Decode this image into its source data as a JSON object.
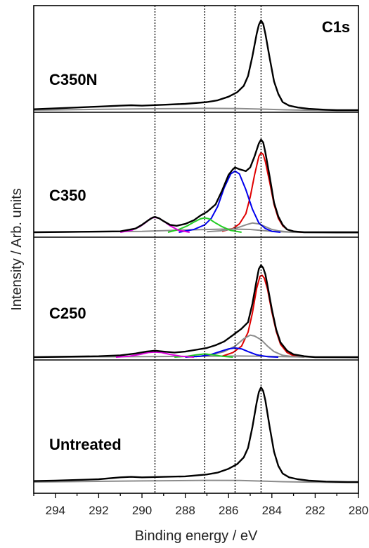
{
  "chart_data": {
    "type": "line",
    "title": "",
    "corner_label": "C1s",
    "xlabel": "Binding energy / eV",
    "ylabel": "Intensity / Arb. units",
    "xlim": [
      295,
      280
    ],
    "x_reversed": true,
    "xticks": [
      294,
      292,
      290,
      288,
      286,
      284,
      282,
      280
    ],
    "reference_lines_eV": [
      289.4,
      287.1,
      285.7,
      284.5
    ],
    "reference_line_style": "dotted",
    "colors": {
      "envelope": "#000000",
      "background": "#8c8c8c",
      "sp2_284_5": "#e00000",
      "peak_284_9": "#8c8c8c",
      "c_oh_285_7": "#0000ee",
      "c_o_287_1": "#22cc22",
      "coo_289_4": "#dd00dd"
    },
    "panels": [
      {
        "label": "C350N",
        "envelope": {
          "x": [
            295,
            294,
            293,
            292,
            291,
            290.5,
            290,
            289,
            288,
            287,
            286.5,
            286,
            285.6,
            285.3,
            285.1,
            284.9,
            284.7,
            284.6,
            284.5,
            284.4,
            284.3,
            284.1,
            283.9,
            283.7,
            283.5,
            283.2,
            282.8,
            282.3,
            281.5,
            281,
            280.5,
            280
          ],
          "y": [
            0.01,
            0.02,
            0.03,
            0.04,
            0.05,
            0.055,
            0.05,
            0.06,
            0.07,
            0.09,
            0.11,
            0.15,
            0.2,
            0.27,
            0.38,
            0.6,
            0.85,
            0.95,
            1.0,
            0.96,
            0.85,
            0.58,
            0.32,
            0.18,
            0.09,
            0.05,
            0.03,
            0.015,
            0.005,
            0.0,
            0.0,
            0.0
          ]
        },
        "background": {
          "x": [
            295,
            290,
            287,
            285.5,
            284.5,
            283.5,
            282.5,
            281,
            280
          ],
          "y": [
            0.0,
            0.015,
            0.02,
            0.018,
            0.012,
            0.005,
            0.0,
            -0.005,
            -0.005
          ]
        },
        "components": []
      },
      {
        "label": "C350",
        "envelope": {
          "x": [
            295,
            291,
            290.3,
            290,
            289.7,
            289.5,
            289.4,
            289.2,
            289,
            288.7,
            288.4,
            288,
            287.6,
            287.3,
            287,
            286.6,
            286.3,
            286,
            285.8,
            285.7,
            285.5,
            285.2,
            285,
            284.8,
            284.6,
            284.5,
            284.4,
            284.3,
            284.1,
            283.9,
            283.7,
            283.5,
            283.3,
            283,
            282.5,
            281,
            280
          ],
          "y": [
            0.0,
            0.01,
            0.04,
            0.08,
            0.13,
            0.16,
            0.165,
            0.15,
            0.12,
            0.08,
            0.07,
            0.09,
            0.13,
            0.18,
            0.22,
            0.3,
            0.45,
            0.62,
            0.68,
            0.7,
            0.68,
            0.66,
            0.7,
            0.82,
            0.96,
            1.0,
            0.97,
            0.86,
            0.6,
            0.32,
            0.17,
            0.08,
            0.03,
            0.01,
            0.0,
            0.0,
            0.0
          ]
        },
        "background": {
          "x": [
            295,
            290,
            288,
            286,
            285,
            284.5,
            284,
            283,
            281,
            280
          ],
          "y": [
            0.0,
            0.01,
            0.025,
            0.035,
            0.03,
            0.02,
            0.01,
            0.0,
            -0.005,
            -0.005
          ]
        },
        "components": [
          {
            "id": "sp2_284_5",
            "x": [
              286.3,
              285.8,
              285.5,
              285.2,
              285,
              284.8,
              284.6,
              284.5,
              284.4,
              284.3,
              284.1,
              283.9,
              283.7,
              283.5,
              283.3,
              283,
              282.6
            ],
            "y": [
              0.01,
              0.04,
              0.09,
              0.2,
              0.38,
              0.62,
              0.82,
              0.86,
              0.84,
              0.76,
              0.54,
              0.3,
              0.15,
              0.07,
              0.03,
              0.01,
              0.0
            ]
          },
          {
            "id": "peak_284_9",
            "x": [
              287,
              286.4,
              285.9,
              285.5,
              285.2,
              284.9,
              284.6,
              284.3,
              284,
              283.7,
              283.3,
              282.8
            ],
            "y": [
              0.005,
              0.015,
              0.03,
              0.055,
              0.08,
              0.1,
              0.09,
              0.06,
              0.03,
              0.015,
              0.005,
              0.0
            ]
          },
          {
            "id": "c_oh_285_7",
            "x": [
              288.3,
              287.6,
              287.1,
              286.8,
              286.5,
              286.2,
              285.9,
              285.7,
              285.5,
              285.2,
              284.9,
              284.6,
              284.3,
              284,
              283.6
            ],
            "y": [
              0.0,
              0.03,
              0.08,
              0.15,
              0.28,
              0.48,
              0.63,
              0.66,
              0.63,
              0.46,
              0.25,
              0.1,
              0.04,
              0.01,
              0.0
            ]
          },
          {
            "id": "c_o_287_1",
            "x": [
              288.8,
              288.3,
              287.9,
              287.6,
              287.3,
              287.1,
              286.9,
              286.6,
              286.3,
              285.9,
              285.4
            ],
            "y": [
              0.0,
              0.03,
              0.07,
              0.11,
              0.145,
              0.155,
              0.145,
              0.1,
              0.06,
              0.02,
              0.0
            ]
          },
          {
            "id": "coo_289_4",
            "x": [
              291,
              290.5,
              290.1,
              289.8,
              289.6,
              289.4,
              289.2,
              289,
              288.7,
              288.3,
              287.8
            ],
            "y": [
              0.0,
              0.02,
              0.06,
              0.11,
              0.15,
              0.16,
              0.15,
              0.12,
              0.07,
              0.02,
              0.0
            ]
          }
        ]
      },
      {
        "label": "C250",
        "envelope": {
          "x": [
            295,
            292,
            291,
            290.3,
            289.8,
            289.4,
            289,
            288.5,
            288,
            287.5,
            287,
            286.6,
            286.2,
            285.8,
            285.4,
            285.1,
            284.9,
            284.7,
            284.6,
            284.5,
            284.4,
            284.3,
            284.2,
            284,
            283.8,
            283.6,
            283.3,
            283,
            282.5,
            282,
            281,
            280
          ],
          "y": [
            0.0,
            0.01,
            0.02,
            0.04,
            0.06,
            0.07,
            0.06,
            0.05,
            0.06,
            0.08,
            0.1,
            0.13,
            0.17,
            0.24,
            0.31,
            0.38,
            0.58,
            0.84,
            0.96,
            1.0,
            0.97,
            0.9,
            0.78,
            0.52,
            0.3,
            0.16,
            0.07,
            0.03,
            0.01,
            0.0,
            0.0,
            0.0
          ]
        },
        "background": {
          "x": [
            295,
            290,
            287,
            285.5,
            284.5,
            283.5,
            282,
            280
          ],
          "y": [
            0.0,
            0.005,
            0.01,
            0.012,
            0.01,
            0.005,
            0.0,
            -0.005
          ]
        },
        "components": [
          {
            "id": "sp2_284_5",
            "x": [
              286.3,
              285.8,
              285.4,
              285.1,
              284.9,
              284.7,
              284.55,
              284.45,
              284.35,
              284.2,
              284,
              283.8,
              283.6,
              283.3,
              283,
              282.5
            ],
            "y": [
              0.01,
              0.05,
              0.12,
              0.27,
              0.48,
              0.75,
              0.88,
              0.89,
              0.86,
              0.74,
              0.49,
              0.28,
              0.14,
              0.05,
              0.015,
              0.0
            ]
          },
          {
            "id": "peak_284_9",
            "x": [
              287.5,
              286.8,
              286.2,
              285.7,
              285.3,
              285,
              284.8,
              284.5,
              284.2,
              283.9,
              283.5,
              283,
              282.5
            ],
            "y": [
              0.005,
              0.025,
              0.06,
              0.12,
              0.2,
              0.24,
              0.23,
              0.19,
              0.12,
              0.06,
              0.02,
              0.005,
              0.0
            ]
          },
          {
            "id": "c_oh_285_7",
            "x": [
              288,
              287.3,
              286.8,
              286.4,
              286,
              285.7,
              285.4,
              285.1,
              284.7,
              284.2,
              283.7
            ],
            "y": [
              0.0,
              0.01,
              0.03,
              0.06,
              0.09,
              0.1,
              0.09,
              0.06,
              0.025,
              0.005,
              0.0
            ]
          },
          {
            "id": "c_o_287_1",
            "x": [
              288.5,
              287.9,
              287.5,
              287.1,
              286.7,
              286.3,
              285.8
            ],
            "y": [
              0.0,
              0.01,
              0.025,
              0.035,
              0.025,
              0.01,
              0.0
            ]
          },
          {
            "id": "coo_289_4",
            "x": [
              291.2,
              290.6,
              290.1,
              289.7,
              289.4,
              289.1,
              288.7,
              288.2,
              287.6
            ],
            "y": [
              0.0,
              0.01,
              0.03,
              0.05,
              0.055,
              0.05,
              0.03,
              0.01,
              0.0
            ]
          }
        ]
      },
      {
        "label": "Untreated",
        "envelope": {
          "x": [
            295,
            294,
            292,
            291,
            290.5,
            290,
            289,
            288,
            287,
            286.5,
            286,
            285.6,
            285.3,
            285.1,
            284.9,
            284.7,
            284.6,
            284.5,
            284.4,
            284.3,
            284.1,
            283.9,
            283.7,
            283.5,
            283.2,
            282.8,
            282.3,
            281.5,
            280.5,
            280
          ],
          "y": [
            0.01,
            0.015,
            0.03,
            0.05,
            0.055,
            0.05,
            0.055,
            0.06,
            0.08,
            0.1,
            0.14,
            0.19,
            0.26,
            0.36,
            0.58,
            0.84,
            0.95,
            1.0,
            0.96,
            0.86,
            0.58,
            0.32,
            0.17,
            0.09,
            0.05,
            0.03,
            0.015,
            0.005,
            0.0,
            0.0
          ]
        },
        "background": {
          "x": [
            295,
            290,
            287,
            285.5,
            284.5,
            283.5,
            282.5,
            281,
            280
          ],
          "y": [
            0.0,
            0.012,
            0.018,
            0.016,
            0.01,
            0.004,
            0.0,
            -0.004,
            -0.004
          ]
        },
        "components": []
      }
    ]
  }
}
